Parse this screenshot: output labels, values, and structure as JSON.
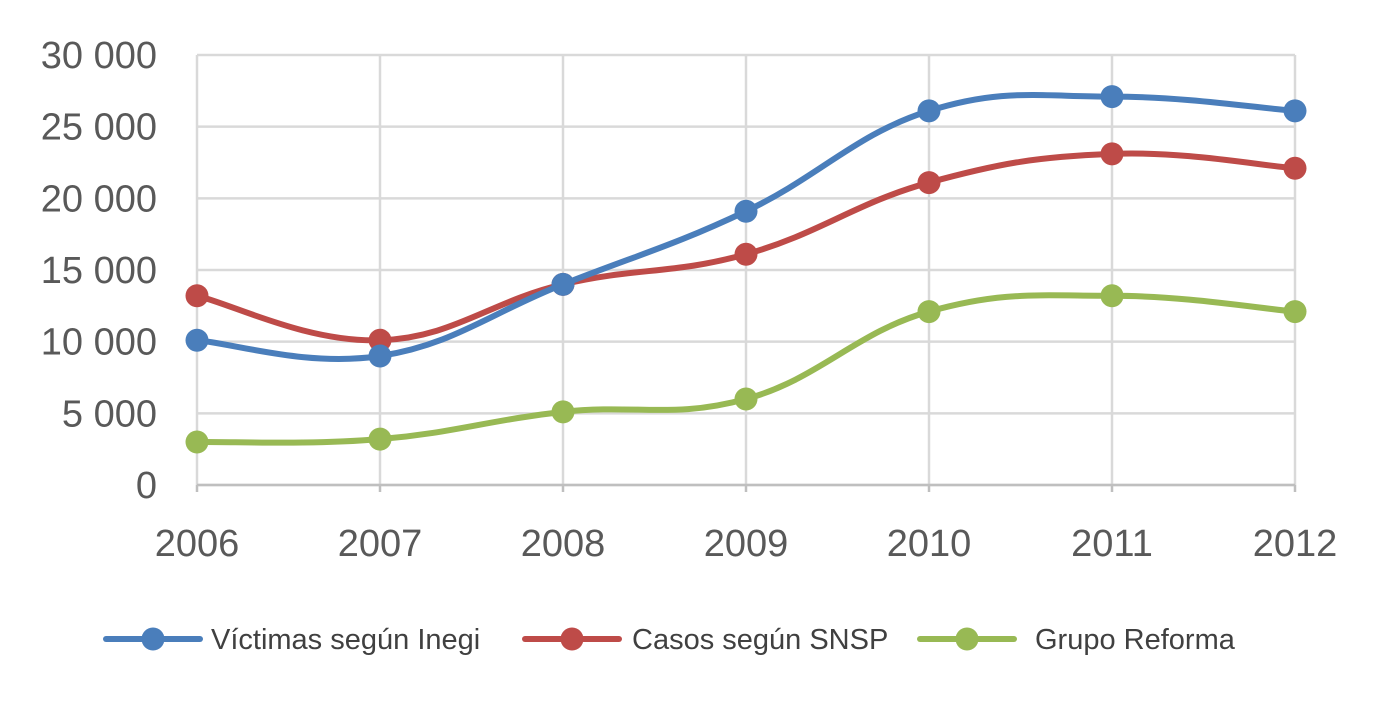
{
  "chart_data": {
    "type": "line",
    "title": "",
    "xlabel": "",
    "ylabel": "",
    "categories": [
      "2006",
      "2007",
      "2008",
      "2009",
      "2010",
      "2011",
      "2012"
    ],
    "ylim": [
      0,
      30000
    ],
    "yticks": [
      0,
      5000,
      10000,
      15000,
      20000,
      25000,
      30000
    ],
    "ytick_labels": [
      "0",
      "5 000",
      "10 000",
      "15 000",
      "20 000",
      "25 000",
      "30 000"
    ],
    "grid": true,
    "smooth": true,
    "legend_position": "bottom",
    "series": [
      {
        "name": "Víctimas según Inegi",
        "color": "#4a7ebb",
        "values": [
          10100,
          9000,
          14000,
          19100,
          26100,
          27100,
          26100
        ]
      },
      {
        "name": "Casos según SNSP",
        "color": "#be4b48",
        "values": [
          13200,
          10100,
          14000,
          16100,
          21100,
          23100,
          22100
        ]
      },
      {
        "name": "Grupo Reforma",
        "color": "#98b954",
        "values": [
          3000,
          3200,
          5100,
          6000,
          12100,
          13200,
          12100
        ]
      }
    ]
  }
}
